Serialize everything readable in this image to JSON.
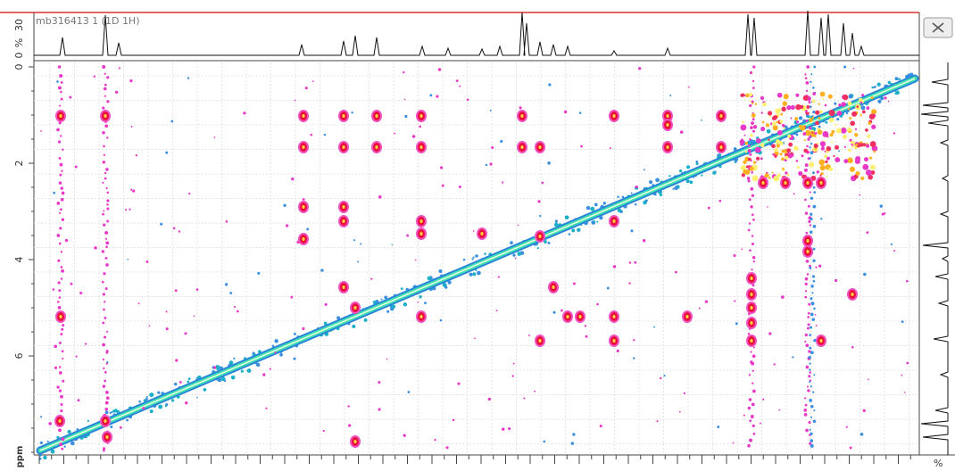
{
  "spectrum_1d": {
    "label": "mb316413 1 (1D 1H)",
    "scale_max": "30",
    "scale_unit": "%",
    "scale_min": "0"
  },
  "axis": {
    "yticks": [
      "0",
      "2",
      "4",
      "6"
    ],
    "unit": "ppm"
  },
  "side_spectrum": {
    "unit": "%"
  }
}
